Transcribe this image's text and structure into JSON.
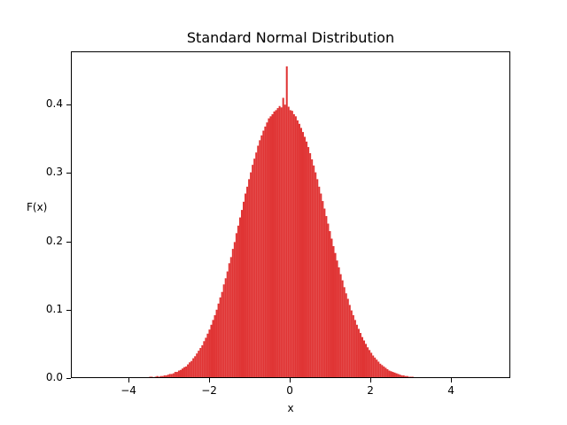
{
  "chart_data": {
    "type": "bar",
    "subtype": "histogram",
    "title": "Standard Normal Distribution",
    "xlabel": "x",
    "ylabel": "F(x)",
    "xlim": [
      -5.43,
      5.47
    ],
    "ylim": [
      0.0,
      0.478
    ],
    "xticks": [
      -4,
      -2,
      0,
      2,
      4
    ],
    "xtick_labels": [
      "−4",
      "−2",
      "0",
      "2",
      "4"
    ],
    "yticks": [
      0.0,
      0.1,
      0.2,
      0.3,
      0.4
    ],
    "ytick_labels": [
      "0.0",
      "0.1",
      "0.2",
      "0.3",
      "0.4"
    ],
    "grid": false,
    "legend": null,
    "color": "#e03434",
    "density": true,
    "bins": {
      "start": -4.2,
      "end": 4.9,
      "count": 200
    },
    "distribution": "standard normal (mean 0, std 1)",
    "peak": {
      "x": 0.24,
      "value": 0.456
    },
    "values": [
      0.001,
      0,
      0.001,
      0,
      0,
      0,
      0,
      0,
      0,
      0,
      0.001,
      0,
      0,
      0,
      0.001,
      0.001,
      0.002,
      0.002,
      0.001,
      0.002,
      0.003,
      0.002,
      0.003,
      0.003,
      0.004,
      0.004,
      0.005,
      0.006,
      0.006,
      0.007,
      0.009,
      0.009,
      0.011,
      0.012,
      0.014,
      0.016,
      0.017,
      0.02,
      0.023,
      0.025,
      0.029,
      0.032,
      0.036,
      0.04,
      0.044,
      0.048,
      0.054,
      0.059,
      0.065,
      0.071,
      0.078,
      0.085,
      0.092,
      0.1,
      0.109,
      0.118,
      0.126,
      0.137,
      0.146,
      0.156,
      0.168,
      0.177,
      0.189,
      0.199,
      0.212,
      0.223,
      0.235,
      0.246,
      0.258,
      0.27,
      0.28,
      0.291,
      0.301,
      0.312,
      0.321,
      0.33,
      0.34,
      0.348,
      0.355,
      0.362,
      0.368,
      0.374,
      0.38,
      0.383,
      0.386,
      0.39,
      0.392,
      0.395,
      0.398,
      0.396,
      0.41,
      0.4,
      0.456,
      0.397,
      0.392,
      0.391,
      0.386,
      0.383,
      0.377,
      0.372,
      0.366,
      0.36,
      0.353,
      0.346,
      0.338,
      0.329,
      0.32,
      0.311,
      0.301,
      0.291,
      0.28,
      0.27,
      0.259,
      0.248,
      0.237,
      0.226,
      0.215,
      0.204,
      0.193,
      0.183,
      0.172,
      0.162,
      0.152,
      0.143,
      0.133,
      0.124,
      0.116,
      0.107,
      0.099,
      0.092,
      0.085,
      0.078,
      0.072,
      0.066,
      0.06,
      0.055,
      0.05,
      0.045,
      0.041,
      0.037,
      0.033,
      0.03,
      0.027,
      0.024,
      0.021,
      0.019,
      0.017,
      0.015,
      0.013,
      0.011,
      0.01,
      0.009,
      0.008,
      0.007,
      0.006,
      0.005,
      0.004,
      0.004,
      0.003,
      0.003,
      0.002,
      0.002,
      0.002,
      0.001,
      0.001,
      0.001,
      0.001,
      0.001,
      0,
      0.001,
      0,
      0,
      0,
      0,
      0,
      0,
      0,
      0,
      0,
      0,
      0,
      0,
      0,
      0,
      0,
      0,
      0,
      0,
      0,
      0,
      0,
      0,
      0,
      0,
      0,
      0,
      0,
      0,
      0,
      0,
      0,
      0,
      0,
      0.001
    ]
  }
}
